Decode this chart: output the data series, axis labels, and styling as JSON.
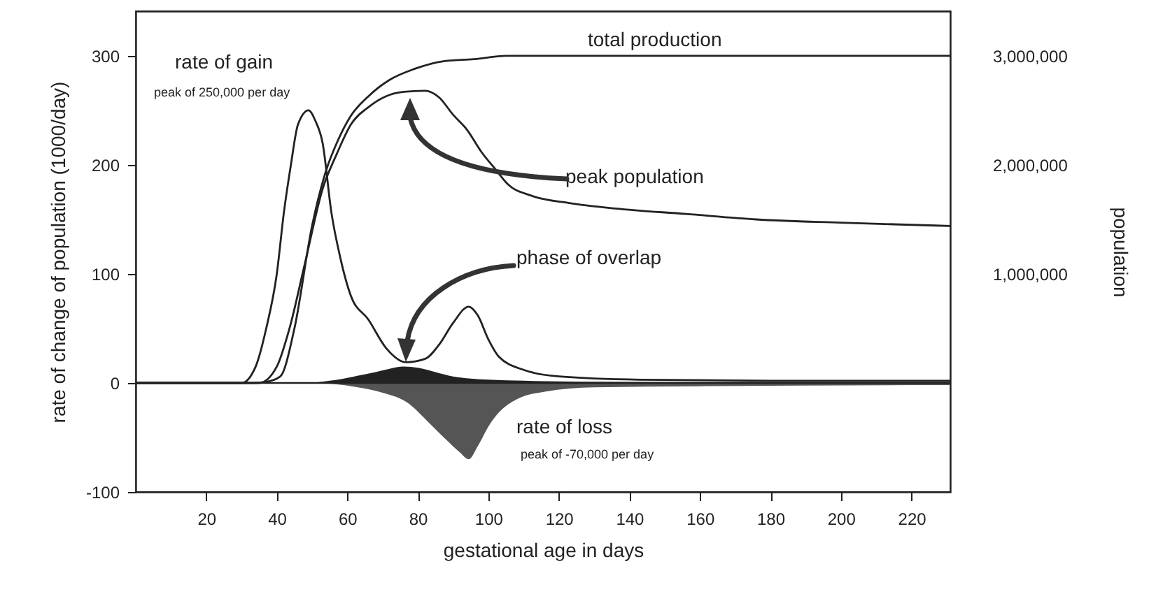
{
  "chart_data": {
    "type": "line",
    "xlabel": "gestational age in days",
    "ylabel": "rate of change of population (1000/day)",
    "y2label": "population",
    "xlim": [
      0,
      231
    ],
    "xticks": [
      20,
      40,
      60,
      80,
      100,
      120,
      140,
      160,
      180,
      200,
      220
    ],
    "ylim": [
      -100,
      341
    ],
    "yticks": [
      -100,
      0,
      100,
      200,
      300
    ],
    "y2lim": [
      -1000000,
      3410000
    ],
    "y2ticks": [
      {
        "value": 1000000,
        "label": "1,000,000"
      },
      {
        "value": 2000000,
        "label": "2,000,000"
      },
      {
        "value": 3000000,
        "label": "3,000,000"
      }
    ],
    "marker": "none",
    "line_style": "solid",
    "series": [
      {
        "type": "line",
        "color": "#222222",
        "x": [
          0,
          30,
          34,
          37,
          40,
          42,
          44,
          46,
          49,
          51,
          53,
          55.5,
          58,
          61,
          66,
          71,
          76.6,
          82,
          86,
          90,
          94.4,
          97,
          100,
          103,
          110,
          120,
          143,
          180,
          231
        ],
        "values": [
          0,
          0,
          15,
          50,
          100,
          156,
          200,
          237,
          250,
          240,
          220,
          156,
          115,
          80,
          58,
          32,
          19,
          22,
          35,
          55,
          70,
          62,
          40,
          24,
          12,
          6,
          3,
          2,
          2
        ]
      },
      {
        "type": "line",
        "axis": "y2",
        "color": "#222222",
        "x": [
          0,
          33,
          37,
          41,
          45,
          50,
          54,
          57,
          61,
          66,
          72,
          79,
          87,
          96,
          105,
          231
        ],
        "values": [
          0,
          0,
          10000,
          60000,
          500000,
          1440000,
          1950000,
          2200000,
          2450000,
          2630000,
          2780000,
          2880000,
          2950000,
          2970000,
          3000000,
          3000000
        ]
      },
      {
        "type": "line",
        "axis": "y2",
        "color": "#222222",
        "x": [
          0,
          35,
          40,
          43.6,
          48,
          53,
          57,
          61,
          66,
          71,
          76,
          82,
          86,
          90,
          94,
          98,
          102,
          105.6,
          112,
          123,
          136,
          156,
          176,
          200,
          231
        ],
        "values": [
          0,
          0,
          150000,
          500000,
          1100000,
          1780000,
          2100000,
          2370000,
          2530000,
          2630000,
          2670000,
          2680000,
          2620000,
          2460000,
          2320000,
          2120000,
          1960000,
          1820000,
          1720000,
          1650000,
          1600000,
          1550000,
          1500000,
          1470000,
          1440000
        ]
      },
      {
        "type": "area",
        "color": "#222222",
        "x": [
          0,
          48,
          55,
          62,
          68,
          72,
          76,
          80,
          85,
          90,
          95,
          100,
          110,
          140,
          231
        ],
        "values": [
          0,
          0,
          2,
          6,
          10,
          13,
          15,
          14,
          10,
          6,
          4,
          3,
          2,
          1,
          1
        ]
      },
      {
        "type": "area",
        "color": "#555555",
        "x": [
          0,
          50,
          56,
          63,
          70,
          77,
          83,
          88,
          92,
          94.4,
          97,
          100,
          103,
          108,
          116,
          130,
          160,
          231
        ],
        "values": [
          0,
          0,
          -1,
          -4,
          -9,
          -18,
          -36,
          -52,
          -64,
          -70,
          -58,
          -40,
          -27,
          -15,
          -8,
          -4,
          -3,
          -2
        ]
      }
    ],
    "ref_lines": [
      {
        "axis": "y",
        "value": 0,
        "color": "#222222"
      }
    ],
    "annotations": [
      "rate of gain",
      "peak of 250,000 per day",
      "total production",
      "peak population",
      "phase of overlap",
      "rate of loss",
      "peak of -70,000 per day"
    ]
  }
}
